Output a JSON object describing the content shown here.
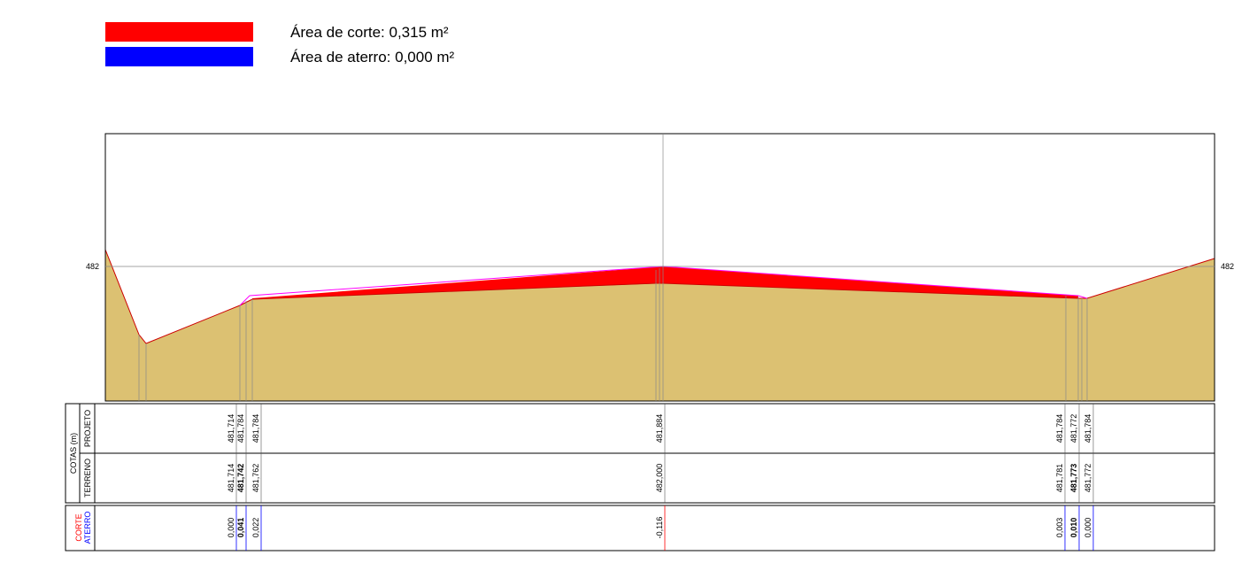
{
  "legend": [
    {
      "label": "Área de corte: 0,315 m²",
      "color": "#ff0000"
    },
    {
      "label": "Área de aterro: 0,000 m²",
      "color": "#0000ff"
    }
  ],
  "elevation_labels": {
    "left": "482",
    "right": "482"
  },
  "cotas": {
    "title": "COTAS (m)",
    "projeto_label": "PROJETO",
    "terreno_label": "TERRENO",
    "projeto": [
      "481,714",
      "481,784",
      "481,784",
      "481,884",
      "481,784",
      "481,772",
      "481,784"
    ],
    "terreno": [
      "481,714",
      "481,742",
      "481,762",
      "482,000",
      "481,781",
      "481,773",
      "481,772"
    ]
  },
  "volumes": {
    "corte_label": "CORTE",
    "aterro_label": "ATERRO",
    "values": [
      "0,000",
      "0,041",
      "0,022",
      "-0,116",
      "0,003",
      "0,010",
      "0,000"
    ]
  }
}
